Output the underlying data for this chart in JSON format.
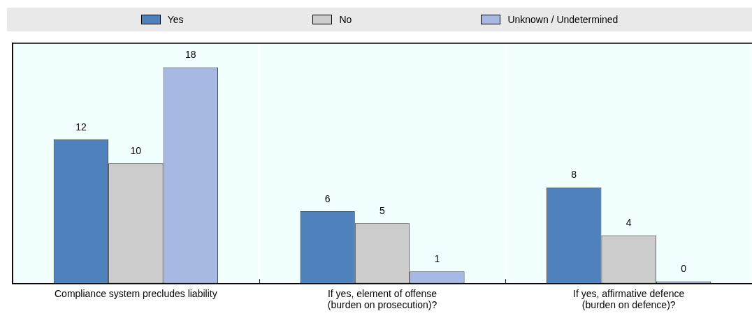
{
  "chart_data": {
    "type": "bar",
    "categories": [
      "Compliance system precludes liability",
      "If yes, element of offense\n(burden on prosecution)?",
      "If yes, affirmative defence\n(burden on defence)?"
    ],
    "series": [
      {
        "name": "Yes",
        "color": "#4f81bd",
        "values": [
          12,
          6,
          8
        ]
      },
      {
        "name": "No",
        "color": "#cccccc",
        "values": [
          10,
          5,
          4
        ]
      },
      {
        "name": "Unknown / Undetermined",
        "color": "#a7b9e3",
        "values": [
          18,
          1,
          0
        ]
      }
    ],
    "ylim": [
      0,
      20
    ],
    "tick_labels": "x",
    "data_labels": true,
    "legend": "top",
    "grid": "x"
  }
}
